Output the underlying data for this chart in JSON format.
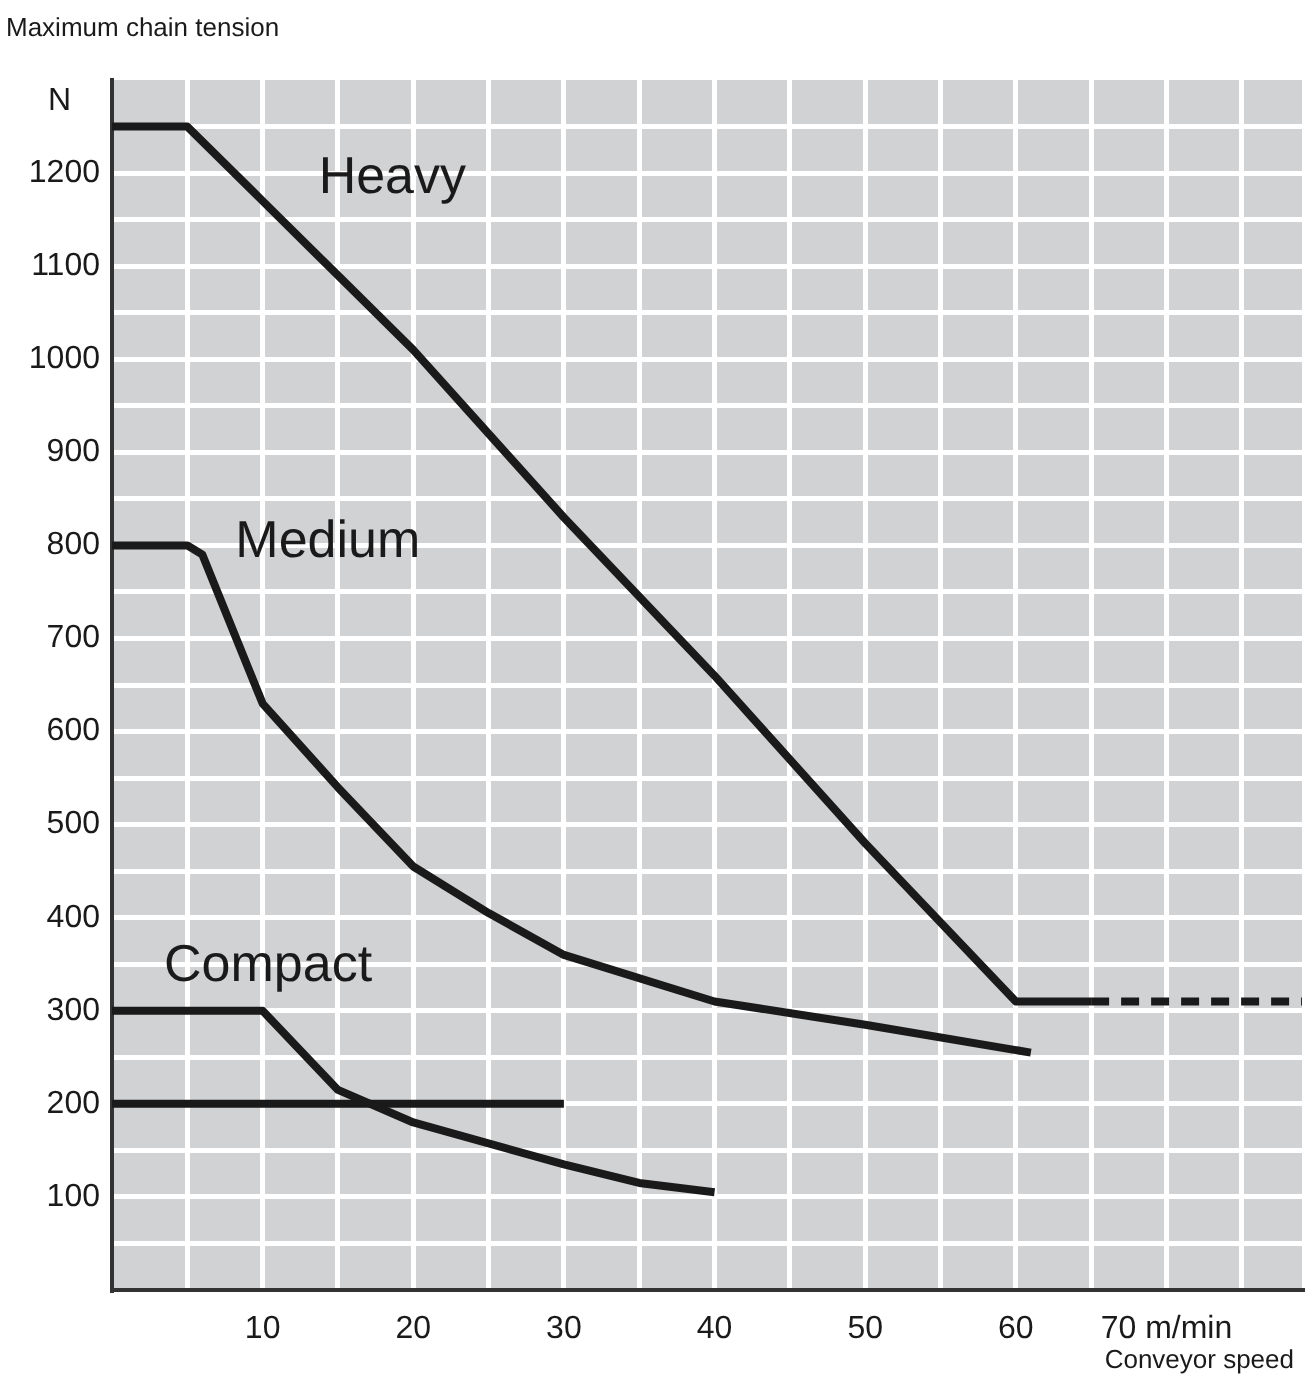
{
  "chart_data": {
    "type": "line",
    "title": "Maximum chain tension",
    "ylabel": "N",
    "xlabel": "Conveyor speed",
    "xlim": [
      0,
      79
    ],
    "ylim": [
      0,
      1300
    ],
    "xticks": [
      {
        "value": 5,
        "label": null
      },
      10,
      {
        "value": 15,
        "label": null
      },
      20,
      {
        "value": 25,
        "label": null
      },
      30,
      {
        "value": 35,
        "label": null
      },
      40,
      {
        "value": 45,
        "label": null
      },
      50,
      {
        "value": 55,
        "label": null
      },
      60,
      {
        "value": 65,
        "label": null
      },
      {
        "value": 70,
        "label": "70 m/min"
      },
      {
        "value": 75,
        "label": null
      }
    ],
    "yticks": [
      {
        "value": 50,
        "label": null
      },
      100,
      {
        "value": 150,
        "label": null
      },
      200,
      {
        "value": 250,
        "label": null
      },
      300,
      {
        "value": 350,
        "label": null
      },
      400,
      {
        "value": 450,
        "label": null
      },
      500,
      {
        "value": 550,
        "label": null
      },
      600,
      {
        "value": 650,
        "label": null
      },
      700,
      {
        "value": 750,
        "label": null
      },
      800,
      {
        "value": 850,
        "label": null
      },
      900,
      {
        "value": 950,
        "label": null
      },
      1000,
      {
        "value": 1050,
        "label": null
      },
      1100,
      {
        "value": 1150,
        "label": null
      },
      1200,
      {
        "value": 1250,
        "label": null
      }
    ],
    "grid": true,
    "marker": "none",
    "line_style": "solid",
    "series": [
      {
        "name": "Heavy",
        "color": "#1a1a1a",
        "x": [
          0,
          5,
          10,
          15,
          20,
          30,
          40,
          50,
          60,
          65
        ],
        "values": [
          1250,
          1250,
          1170,
          1090,
          1010,
          830,
          660,
          480,
          310,
          310
        ]
      },
      {
        "color": "#1a1a1a",
        "line_style": "dashed",
        "x": [
          65,
          79
        ],
        "values": [
          310,
          310
        ]
      },
      {
        "name": "Medium",
        "color": "#1a1a1a",
        "x": [
          0,
          5,
          6,
          10,
          15,
          20,
          25,
          30,
          40,
          50,
          61
        ],
        "values": [
          800,
          800,
          790,
          630,
          540,
          455,
          405,
          360,
          310,
          285,
          255
        ]
      },
      {
        "name": "Compact",
        "color": "#1a1a1a",
        "x": [
          0,
          10,
          15,
          20,
          30,
          35,
          40
        ],
        "values": [
          300,
          300,
          215,
          180,
          135,
          115,
          105
        ]
      },
      {
        "color": "#1a1a1a",
        "x": [
          0,
          30
        ],
        "values": [
          200,
          200
        ]
      }
    ]
  }
}
